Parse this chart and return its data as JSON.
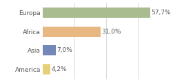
{
  "categories": [
    "Europa",
    "Africa",
    "Asia",
    "America"
  ],
  "values": [
    57.7,
    31.0,
    7.0,
    4.2
  ],
  "labels": [
    "57,7%",
    "31,0%",
    "7,0%",
    "4,2%"
  ],
  "bar_colors": [
    "#a8bc8f",
    "#e8b882",
    "#7387b8",
    "#e8d07a"
  ],
  "xlim": [
    0,
    68
  ],
  "background_color": "#ffffff",
  "label_fontsize": 6.5,
  "tick_fontsize": 6.5,
  "bar_height": 0.55,
  "gridlines": [
    17,
    34,
    51,
    68
  ]
}
